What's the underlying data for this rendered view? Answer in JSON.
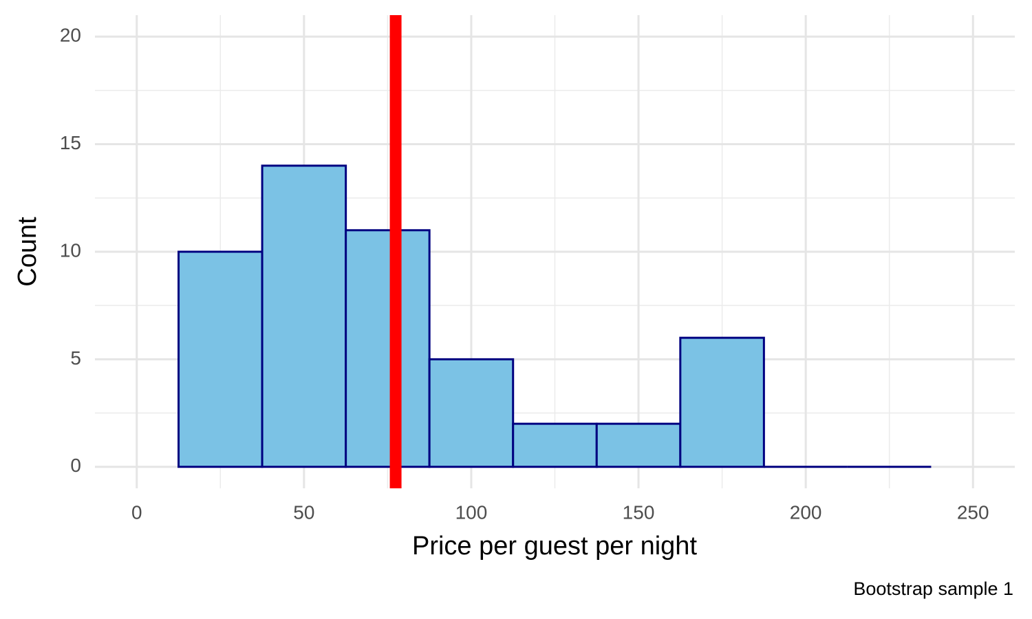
{
  "chart_data": {
    "type": "histogram",
    "xlabel": "Price per guest per night",
    "ylabel": "Count",
    "caption": "Bootstrap sample 1",
    "bins": [
      12.5,
      37.5,
      62.5,
      87.5,
      112.5,
      137.5,
      162.5,
      187.5,
      212.5,
      237.5
    ],
    "counts": [
      10,
      14,
      11,
      5,
      2,
      2,
      6,
      0,
      0
    ],
    "color": "#7bc2e5",
    "edgecolor": "#000080",
    "vline": 77.4,
    "vline_color": "#ff0000",
    "xlim": [
      -12.5,
      262.5
    ],
    "ylim": [
      -1,
      21
    ],
    "xticks": [
      0,
      50,
      100,
      150,
      200,
      250
    ],
    "yticks": [
      0,
      5,
      10,
      15,
      20
    ],
    "x_minor_grid": [
      25,
      75,
      125,
      175,
      225
    ],
    "y_minor_grid": [
      2.5,
      7.5,
      12.5,
      17.5
    ],
    "grid": true
  }
}
